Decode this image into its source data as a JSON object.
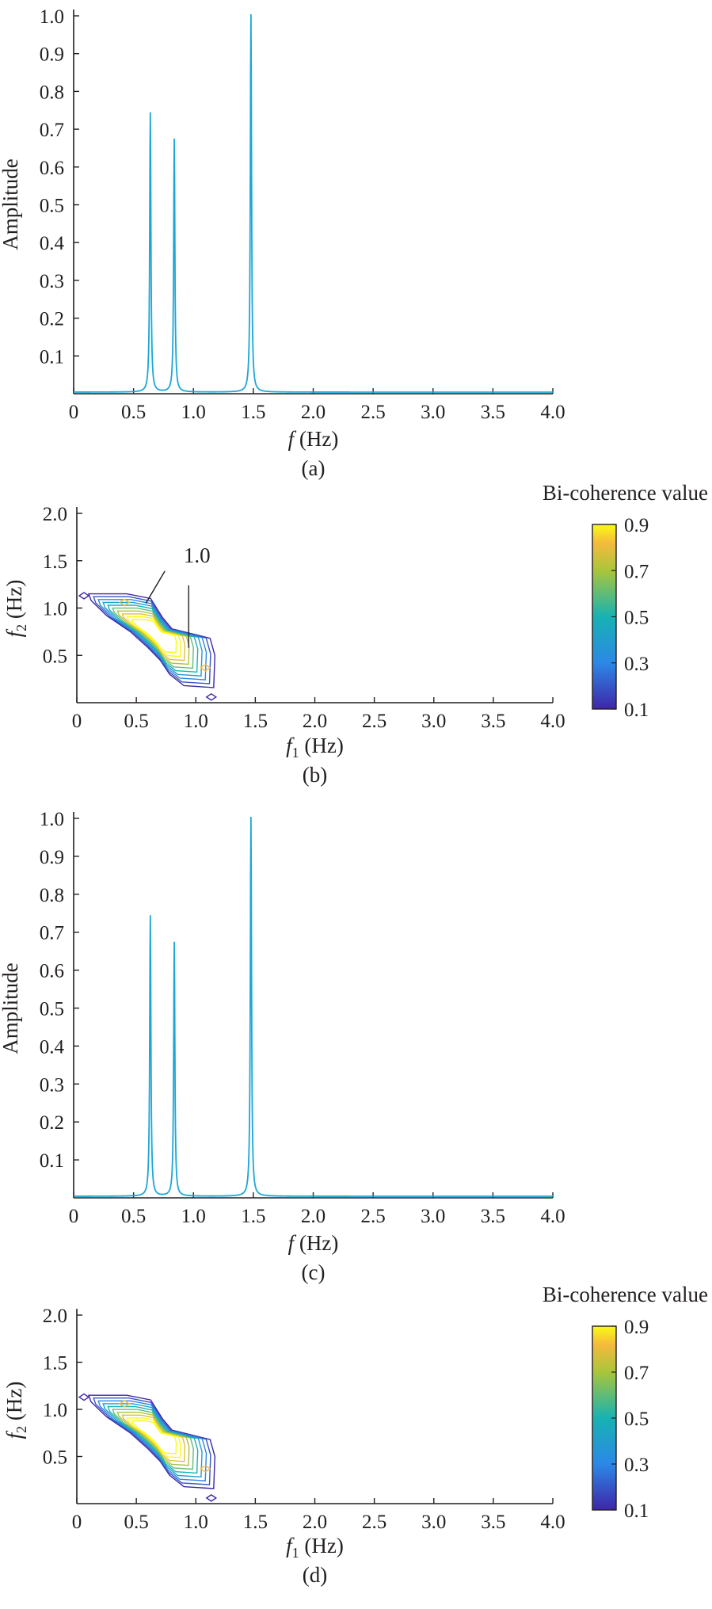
{
  "chart_data": [
    {
      "type": "line",
      "panel_label": "(a)",
      "xlabel_italic": "f",
      "xlabel_unit": " (Hz)",
      "ylabel": "Amplitude",
      "xlim": [
        0,
        4.0
      ],
      "ylim": [
        0,
        1.0
      ],
      "xticks": [
        "0",
        "0.5",
        "1.0",
        "1.5",
        "2.0",
        "2.5",
        "3.0",
        "3.5",
        "4.0"
      ],
      "yticks": [
        "0.1",
        "0.2",
        "0.3",
        "0.4",
        "0.5",
        "0.6",
        "0.7",
        "0.8",
        "0.9",
        "1.0"
      ],
      "grid": false,
      "line_color": "#1aa7d8",
      "peaks": [
        {
          "x": 0.64,
          "y": 0.74
        },
        {
          "x": 0.84,
          "y": 0.67
        },
        {
          "x": 1.48,
          "y": 1.0
        }
      ]
    },
    {
      "type": "contour",
      "panel_label": "(b)",
      "xlabel_italic": "f",
      "xlabel_sub": "1",
      "xlabel_unit": " (Hz)",
      "ylabel_italic": "f",
      "ylabel_sub": "2",
      "ylabel_unit": " (Hz)",
      "xlim": [
        0,
        4.0
      ],
      "ylim": [
        0,
        2.0
      ],
      "xticks": [
        "0",
        "0.5",
        "1.0",
        "1.5",
        "2.0",
        "2.5",
        "3.0",
        "3.5",
        "4.0"
      ],
      "yticks": [
        "0.5",
        "1.0",
        "1.5",
        "2.0"
      ],
      "colorbar_title": "Bi-coherence value",
      "colorbar_ticks": [
        "0.9",
        "0.7",
        "0.5",
        "0.3",
        "0.1"
      ],
      "colorbar_range": [
        0.1,
        0.9
      ],
      "contour_levels": [
        0.1,
        0.2,
        0.3,
        0.4,
        0.5,
        0.6,
        0.7,
        0.8,
        0.9,
        1.0
      ],
      "annotation": "1.0"
    },
    {
      "type": "line",
      "panel_label": "(c)",
      "xlabel_italic": "f",
      "xlabel_unit": " (Hz)",
      "ylabel": "Amplitude",
      "xlim": [
        0,
        4.0
      ],
      "ylim": [
        0,
        1.0
      ],
      "xticks": [
        "0",
        "0.5",
        "1.0",
        "1.5",
        "2.0",
        "2.5",
        "3.0",
        "3.5",
        "4.0"
      ],
      "yticks": [
        "0.1",
        "0.2",
        "0.3",
        "0.4",
        "0.5",
        "0.6",
        "0.7",
        "0.8",
        "0.9",
        "1.0"
      ],
      "grid": false,
      "line_color": "#1aa7d8",
      "peaks": [
        {
          "x": 0.64,
          "y": 0.74
        },
        {
          "x": 0.84,
          "y": 0.67
        },
        {
          "x": 1.48,
          "y": 1.0
        }
      ]
    },
    {
      "type": "contour",
      "panel_label": "(d)",
      "xlabel_italic": "f",
      "xlabel_sub": "1",
      "xlabel_unit": " (Hz)",
      "ylabel_italic": "f",
      "ylabel_sub": "2",
      "ylabel_unit": " (Hz)",
      "xlim": [
        0,
        4.0
      ],
      "ylim": [
        0,
        2.0
      ],
      "xticks": [
        "0",
        "0.5",
        "1.0",
        "1.5",
        "2.0",
        "2.5",
        "3.0",
        "3.5",
        "4.0"
      ],
      "yticks": [
        "0.5",
        "1.0",
        "1.5",
        "2.0"
      ],
      "colorbar_title": "Bi-coherence value",
      "colorbar_ticks": [
        "0.9",
        "0.7",
        "0.5",
        "0.3",
        "0.1"
      ],
      "colorbar_range": [
        0.1,
        0.9
      ],
      "contour_levels": [
        0.1,
        0.2,
        0.3,
        0.4,
        0.5,
        0.6,
        0.7,
        0.8,
        0.9,
        1.0
      ]
    }
  ]
}
